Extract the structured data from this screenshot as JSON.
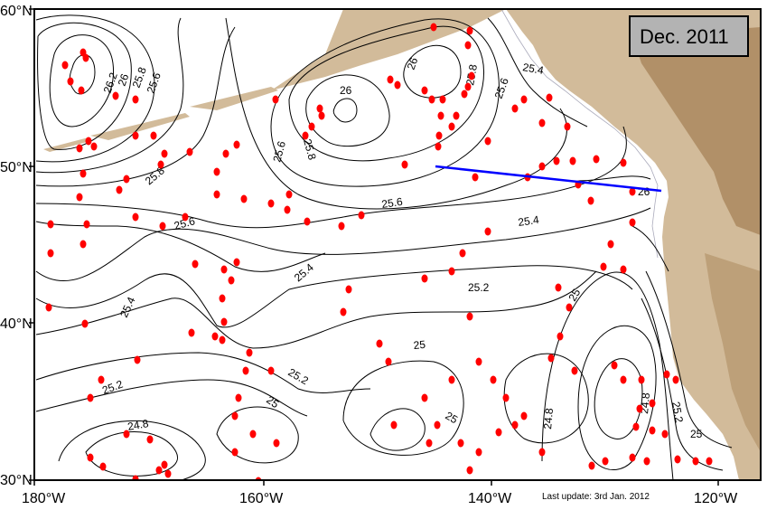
{
  "map": {
    "date_label": "Dec. 2011",
    "last_update": "Last update: 3rd Jan. 2012",
    "lon_ticks": [
      "180°W",
      "160°W",
      "140°W",
      "120°W"
    ],
    "lat_ticks": [
      "60°N",
      "50°N",
      "40°N",
      "30°N"
    ],
    "contour_labels": [
      {
        "text": "26.2"
      },
      {
        "text": "26"
      },
      {
        "text": "25.8"
      },
      {
        "text": "25.6"
      },
      {
        "text": "25.8"
      },
      {
        "text": "25.6"
      },
      {
        "text": "26"
      },
      {
        "text": "25.8"
      },
      {
        "text": "26"
      },
      {
        "text": "25.8"
      },
      {
        "text": "25.6"
      },
      {
        "text": "25.4"
      },
      {
        "text": "25.6"
      },
      {
        "text": "25.6"
      },
      {
        "text": "25.4"
      },
      {
        "text": "26"
      },
      {
        "text": "25.4"
      },
      {
        "text": "25.2"
      },
      {
        "text": "25"
      },
      {
        "text": "25.4"
      },
      {
        "text": "25"
      },
      {
        "text": "25.2"
      },
      {
        "text": "25"
      },
      {
        "text": "25.2"
      },
      {
        "text": "24.8"
      },
      {
        "text": "25"
      },
      {
        "text": "24.8"
      },
      {
        "text": "24.8"
      },
      {
        "text": "25.2"
      },
      {
        "text": "25"
      }
    ],
    "colors": {
      "land": "#d2bb9a",
      "land_dark": "#a9865b",
      "ocean": "#ffffff",
      "contour": "#000000",
      "float_marker": "#ff0000",
      "section_line": "#0000ff",
      "datebox_fill": "#b3b3b3"
    }
  }
}
